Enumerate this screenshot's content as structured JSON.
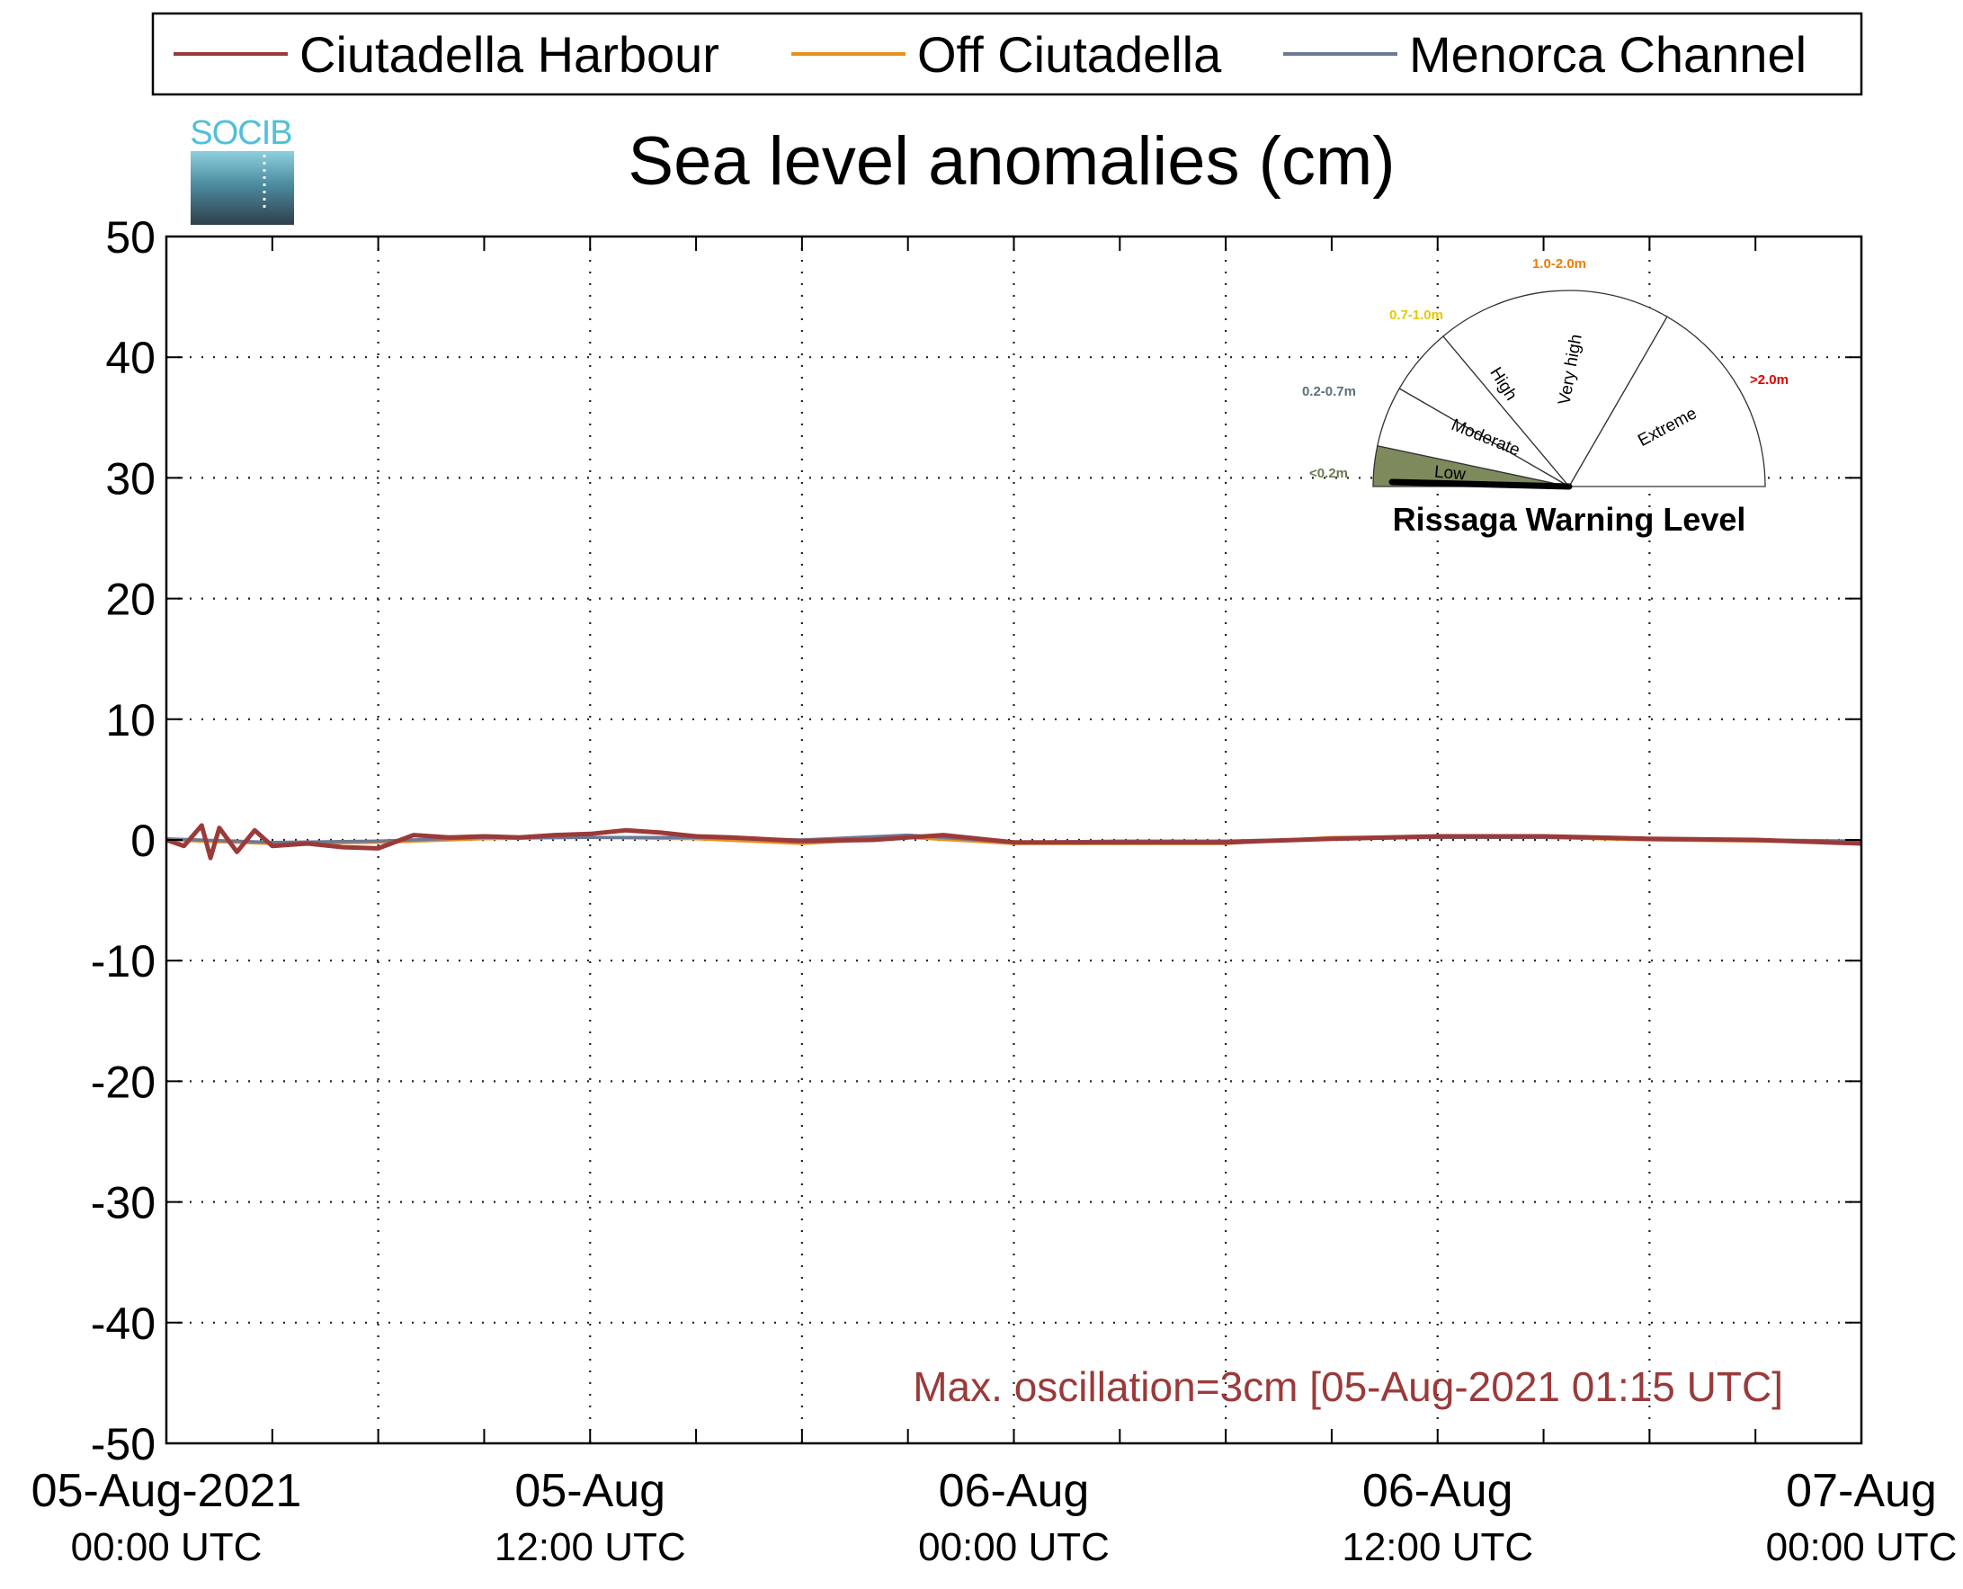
{
  "chart_data": {
    "type": "line",
    "title": "Sea level anomalies (cm)",
    "ylabel": "",
    "xlabel": "",
    "ylim": [
      -50,
      50
    ],
    "yticks": [
      50,
      40,
      30,
      20,
      10,
      0,
      -10,
      -20,
      -30,
      -40,
      -50
    ],
    "xlim": [
      "2021-08-05 00:00",
      "2021-08-07 00:00"
    ],
    "grid": true,
    "legend_position": "top",
    "xtick_labels": [
      {
        "line1": "05-Aug-2021",
        "line2": "00:00 UTC",
        "time": "2021-08-05 00:00"
      },
      {
        "line1": "05-Aug",
        "line2": "12:00 UTC",
        "time": "2021-08-05 12:00"
      },
      {
        "line1": "06-Aug",
        "line2": "00:00 UTC",
        "time": "2021-08-06 00:00"
      },
      {
        "line1": "06-Aug",
        "line2": "12:00 UTC",
        "time": "2021-08-06 12:00"
      },
      {
        "line1": "07-Aug",
        "line2": "00:00 UTC",
        "time": "2021-08-07 00:00"
      }
    ],
    "series": [
      {
        "name": "Ciutadella Harbour",
        "color": "#9b3a3a",
        "points": [
          [
            "2021-08-05 00:00",
            0.0
          ],
          [
            "2021-08-05 00:30",
            -0.5
          ],
          [
            "2021-08-05 01:00",
            1.2
          ],
          [
            "2021-08-05 01:15",
            -1.5
          ],
          [
            "2021-08-05 01:30",
            1.0
          ],
          [
            "2021-08-05 02:00",
            -1.0
          ],
          [
            "2021-08-05 02:30",
            0.8
          ],
          [
            "2021-08-05 03:00",
            -0.5
          ],
          [
            "2021-08-05 04:00",
            -0.3
          ],
          [
            "2021-08-05 05:00",
            -0.6
          ],
          [
            "2021-08-05 06:00",
            -0.7
          ],
          [
            "2021-08-05 07:00",
            0.4
          ],
          [
            "2021-08-05 08:00",
            0.2
          ],
          [
            "2021-08-05 09:00",
            0.3
          ],
          [
            "2021-08-05 10:00",
            0.2
          ],
          [
            "2021-08-05 11:00",
            0.4
          ],
          [
            "2021-08-05 12:00",
            0.5
          ],
          [
            "2021-08-05 13:00",
            0.8
          ],
          [
            "2021-08-05 14:00",
            0.6
          ],
          [
            "2021-08-05 15:00",
            0.3
          ],
          [
            "2021-08-05 16:00",
            0.2
          ],
          [
            "2021-08-05 18:00",
            -0.1
          ],
          [
            "2021-08-05 20:00",
            0.0
          ],
          [
            "2021-08-05 22:00",
            0.4
          ],
          [
            "2021-08-06 00:00",
            -0.2
          ],
          [
            "2021-08-06 03:00",
            -0.2
          ],
          [
            "2021-08-06 06:00",
            -0.2
          ],
          [
            "2021-08-06 09:00",
            0.1
          ],
          [
            "2021-08-06 12:00",
            0.3
          ],
          [
            "2021-08-06 15:00",
            0.3
          ],
          [
            "2021-08-06 18:00",
            0.1
          ],
          [
            "2021-08-06 21:00",
            0.0
          ],
          [
            "2021-08-07 00:00",
            -0.3
          ]
        ]
      },
      {
        "name": "Off Ciutadella",
        "color": "#e8901e",
        "points": [
          [
            "2021-08-05 00:00",
            0.0
          ],
          [
            "2021-08-05 03:00",
            -0.3
          ],
          [
            "2021-08-05 06:00",
            -0.2
          ],
          [
            "2021-08-05 09:00",
            0.1
          ],
          [
            "2021-08-05 12:00",
            0.2
          ],
          [
            "2021-08-05 15:00",
            0.1
          ],
          [
            "2021-08-05 18:00",
            -0.3
          ],
          [
            "2021-08-05 21:00",
            0.2
          ],
          [
            "2021-08-06 00:00",
            -0.3
          ],
          [
            "2021-08-06 03:00",
            -0.3
          ],
          [
            "2021-08-06 06:00",
            -0.3
          ],
          [
            "2021-08-06 09:00",
            0.2
          ],
          [
            "2021-08-06 12:00",
            0.3
          ],
          [
            "2021-08-06 15:00",
            0.2
          ],
          [
            "2021-08-06 18:00",
            0.0
          ],
          [
            "2021-08-06 21:00",
            -0.1
          ],
          [
            "2021-08-07 00:00",
            -0.2
          ]
        ]
      },
      {
        "name": "Menorca Channel",
        "color": "#6d7894",
        "points": [
          [
            "2021-08-05 00:00",
            0.1
          ],
          [
            "2021-08-05 03:00",
            -0.2
          ],
          [
            "2021-08-05 06:00",
            -0.1
          ],
          [
            "2021-08-05 09:00",
            0.2
          ],
          [
            "2021-08-05 12:00",
            0.2
          ],
          [
            "2021-08-05 15:00",
            0.2
          ],
          [
            "2021-08-05 18:00",
            0.0
          ],
          [
            "2021-08-05 21:00",
            0.4
          ],
          [
            "2021-08-06 00:00",
            -0.2
          ],
          [
            "2021-08-06 03:00",
            -0.1
          ],
          [
            "2021-08-06 06:00",
            -0.1
          ],
          [
            "2021-08-06 09:00",
            0.1
          ],
          [
            "2021-08-06 12:00",
            0.2
          ],
          [
            "2021-08-06 15:00",
            0.2
          ],
          [
            "2021-08-06 18:00",
            0.1
          ],
          [
            "2021-08-06 21:00",
            0.0
          ],
          [
            "2021-08-07 00:00",
            -0.1
          ]
        ]
      }
    ],
    "annotation": {
      "text": "Max. oscillation=3cm [05-Aug-2021 01:15 UTC]",
      "color": "#9b3a3a"
    },
    "gauge": {
      "title": "Rissaga Warning Level",
      "current_level": "Low",
      "sectors": [
        {
          "label": "Low",
          "range": "<0.2m",
          "range_color": "#6b7a4e",
          "fill": "#7c8a5c"
        },
        {
          "label": "Moderate",
          "range": "0.2-0.7m",
          "range_color": "#5b7078",
          "fill": "#ffffff"
        },
        {
          "label": "High",
          "range": "0.7-1.0m",
          "range_color": "#e8c800",
          "fill": "#ffffff"
        },
        {
          "label": "Very high",
          "range": "1.0-2.0m",
          "range_color": "#ef7d00",
          "fill": "#ffffff"
        },
        {
          "label": "Extreme",
          "range": ">2.0m",
          "range_color": "#e00000",
          "fill": "#ffffff"
        }
      ]
    },
    "logo": {
      "text": "SOCIB",
      "text_color": "#4fc0d8"
    }
  }
}
